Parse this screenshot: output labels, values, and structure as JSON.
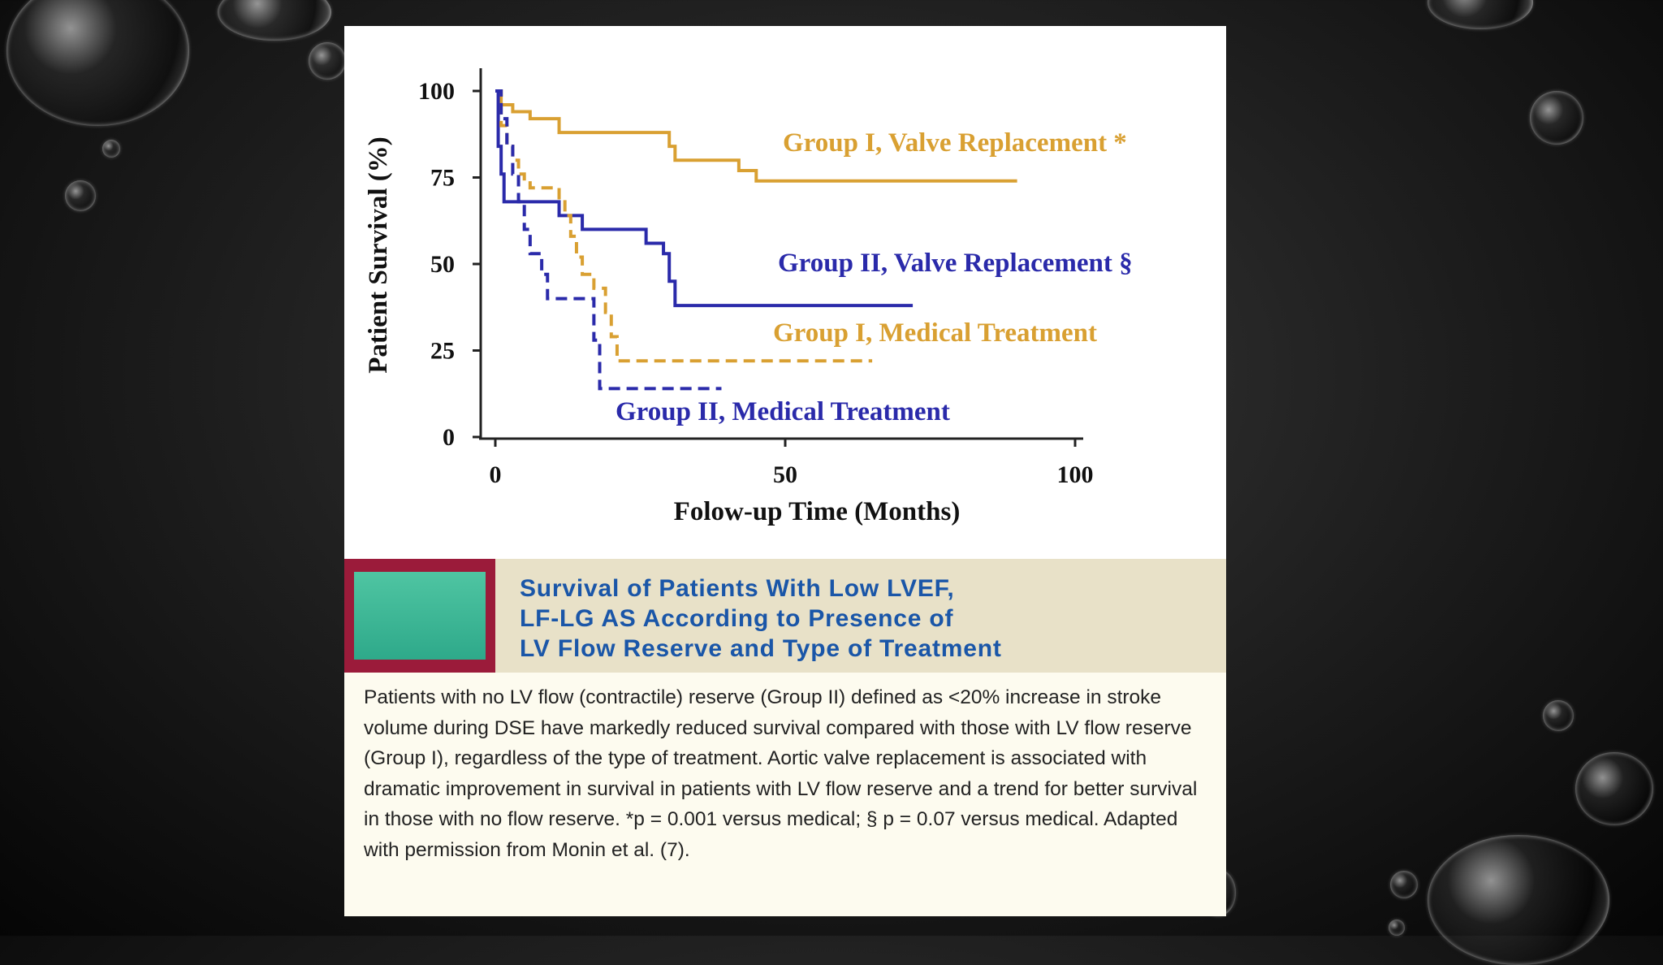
{
  "chart_data": {
    "type": "line",
    "step": true,
    "xlabel": "Folow-up Time (Months)",
    "ylabel": "Patient Survival (%)",
    "xlim": [
      0,
      100
    ],
    "ylim": [
      0,
      100
    ],
    "xticks": [
      "0",
      "50",
      "100"
    ],
    "yticks": [
      "0",
      "25",
      "50",
      "75",
      "100"
    ],
    "series": [
      {
        "name": "Group I, Valve Replacement *",
        "color": "#d9a032",
        "dash": false,
        "x": [
          0,
          1,
          3,
          6,
          11,
          29,
          30,
          31,
          41,
          42,
          45,
          90
        ],
        "y": [
          100,
          96,
          94,
          92,
          88,
          88,
          84,
          80,
          80,
          77,
          74,
          74
        ]
      },
      {
        "name": "Group II, Valve Replacement §",
        "color": "#2a2aaa",
        "dash": false,
        "x": [
          0,
          0.5,
          1,
          1.5,
          10,
          11,
          13,
          15,
          25,
          26,
          29,
          30,
          31,
          72
        ],
        "y": [
          100,
          84,
          76,
          68,
          68,
          64,
          64,
          60,
          60,
          56,
          53,
          45,
          38,
          38
        ]
      },
      {
        "name": "Group I, Medical Treatment",
        "color": "#d9a032",
        "dash": true,
        "x": [
          0,
          1,
          2,
          3,
          4,
          5,
          6,
          10,
          11,
          12,
          13,
          14,
          15,
          17,
          19,
          20,
          21,
          65
        ],
        "y": [
          100,
          90,
          84,
          80,
          76,
          74,
          72,
          72,
          68,
          64,
          58,
          52,
          47,
          43,
          36,
          29,
          22,
          22
        ]
      },
      {
        "name": "Group II, Medical Treatment",
        "color": "#2a2aaa",
        "dash": true,
        "x": [
          0,
          1,
          2,
          3,
          4,
          5,
          6,
          8,
          9,
          16,
          17,
          18,
          39
        ],
        "y": [
          100,
          92,
          84,
          76,
          68,
          60,
          53,
          47,
          40,
          40,
          28,
          14,
          14
        ]
      }
    ],
    "annotations": [
      "Group I, Valve Replacement *",
      "Group II, Valve Replacement §",
      "Group I, Medical Treatment",
      "Group II, Medical Treatment"
    ]
  },
  "caption": {
    "title_lines": [
      "Survival of Patients With Low LVEF,",
      "LF-LG AS According to Presence of",
      "LV Flow Reserve and Type of Treatment"
    ],
    "body": "Patients with no LV flow (contractile) reserve (Group II) defined as <20% increase in stroke volume during DSE have markedly reduced survival compared with those with LV flow reserve (Group I), regardless of the type of treatment. Aortic valve replacement is associated with dramatic improvement in survival in patients with LV flow reserve and a trend for better survival in those with no flow reserve. *p = 0.001 versus medical; § p = 0.07 versus medical. Adapted with permission from Monin et al. (7)."
  }
}
